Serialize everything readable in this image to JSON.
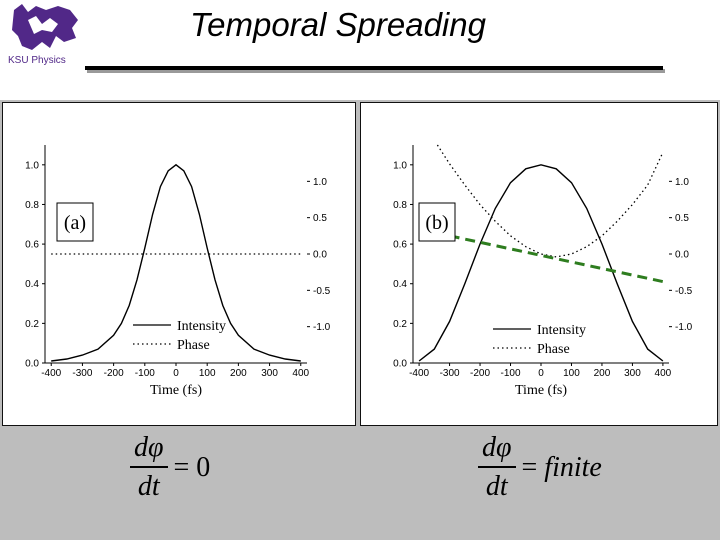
{
  "header": {
    "title": "Temporal Spreading",
    "logo_text": "KSU Physics"
  },
  "colors": {
    "background_band": "#bdbdbd",
    "curve": "#000000",
    "dashed_fit": "#2e7d1f"
  },
  "chart_data": [
    {
      "type": "line",
      "panel_label": "(a)",
      "xlabel": "Time (fs)",
      "x_ticks": [
        -400,
        -300,
        -200,
        -100,
        0,
        100,
        200,
        300,
        400
      ],
      "xlim": [
        -420,
        420
      ],
      "y_left_ticks": [
        "0.0",
        "0.2",
        "0.4",
        "0.6",
        "0.8",
        "1.0"
      ],
      "ylim_left": [
        0,
        1.1
      ],
      "y_right_ticks": [
        "1.0",
        "0.5",
        "0.0",
        "-0.5",
        "-1.0"
      ],
      "ylim_right": [
        -1.5,
        1.5
      ],
      "legend": [
        "Intensity",
        "Phase"
      ],
      "legend_position": "lower-left",
      "series": [
        {
          "name": "Intensity",
          "axis": "left",
          "style": "solid",
          "x": [
            -400,
            -350,
            -300,
            -250,
            -200,
            -175,
            -150,
            -125,
            -100,
            -75,
            -50,
            -25,
            0,
            25,
            50,
            75,
            100,
            125,
            150,
            175,
            200,
            250,
            300,
            350,
            400
          ],
          "y": [
            0.01,
            0.02,
            0.04,
            0.07,
            0.14,
            0.2,
            0.29,
            0.42,
            0.58,
            0.75,
            0.89,
            0.97,
            1.0,
            0.97,
            0.89,
            0.75,
            0.58,
            0.42,
            0.29,
            0.2,
            0.14,
            0.07,
            0.04,
            0.02,
            0.01
          ]
        },
        {
          "name": "Phase",
          "axis": "right",
          "style": "dotted",
          "x": [
            -400,
            400
          ],
          "y": [
            0.0,
            0.0
          ]
        }
      ]
    },
    {
      "type": "line",
      "panel_label": "(b)",
      "xlabel": "Time (fs)",
      "x_ticks": [
        -400,
        -300,
        -200,
        -100,
        0,
        100,
        200,
        300,
        400
      ],
      "xlim": [
        -420,
        420
      ],
      "y_left_ticks": [
        "0.0",
        "0.2",
        "0.4",
        "0.6",
        "0.8",
        "1.0"
      ],
      "ylim_left": [
        0,
        1.1
      ],
      "y_right_ticks": [
        "1.0",
        "0.5",
        "0.0",
        "-0.5",
        "-1.0"
      ],
      "ylim_right": [
        -1.5,
        1.5
      ],
      "legend": [
        "Intensity",
        "Phase"
      ],
      "legend_position": "lower-left",
      "series": [
        {
          "name": "Intensity",
          "axis": "left",
          "style": "solid",
          "x": [
            -400,
            -350,
            -300,
            -250,
            -200,
            -150,
            -100,
            -50,
            0,
            50,
            100,
            150,
            200,
            250,
            300,
            350,
            400
          ],
          "y": [
            0.01,
            0.07,
            0.21,
            0.4,
            0.6,
            0.78,
            0.91,
            0.98,
            1.0,
            0.98,
            0.91,
            0.78,
            0.6,
            0.4,
            0.21,
            0.07,
            0.01
          ]
        },
        {
          "name": "Phase",
          "axis": "right",
          "style": "dotted",
          "x": [
            -340,
            -300,
            -250,
            -200,
            -150,
            -100,
            -50,
            0,
            50,
            100,
            150,
            200,
            250,
            300,
            350,
            400
          ],
          "y": [
            1.5,
            1.24,
            0.95,
            0.68,
            0.45,
            0.25,
            0.1,
            0.0,
            -0.04,
            0.0,
            0.1,
            0.25,
            0.45,
            0.68,
            0.95,
            1.4
          ]
        },
        {
          "name": "linear-fit",
          "axis": "right",
          "style": "dashed",
          "x": [
            -300,
            400
          ],
          "y": [
            0.25,
            -0.38
          ]
        }
      ]
    }
  ],
  "equations": {
    "left": {
      "num": "dφ",
      "den": "dt",
      "rhs": "= 0"
    },
    "right": {
      "num": "dφ",
      "den": "dt",
      "eq": "=",
      "rhs": "finite"
    }
  }
}
